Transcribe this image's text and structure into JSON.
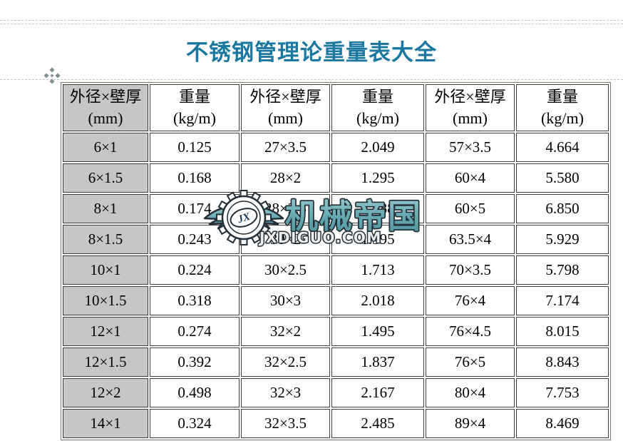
{
  "page": {
    "title": "不锈钢管理论重量表大全"
  },
  "colors": {
    "title_text": "#1B79A1",
    "table_header_column_bg": "#C6C6C6",
    "table_border": "#3F3F3A",
    "watermark_teal": "#6AACB3",
    "watermark_outline": "#232E36"
  },
  "icons": {
    "table_move_handle": "four-diamond-move-handle",
    "watermark_logo": "winged-gear-logo"
  },
  "table": {
    "header": {
      "size_line1": "外径×壁厚",
      "size_line2": "(mm)",
      "weight_line1": "重量",
      "weight_line2": "(kg/m)"
    },
    "rows": [
      [
        "6×1",
        "0.125",
        "27×3.5",
        "2.049",
        "57×3.5",
        "4.664"
      ],
      [
        "6×1.5",
        "0.168",
        "28×2",
        "1.295",
        "60×4",
        "5.580"
      ],
      [
        "8×1",
        "0.174",
        "28×2.5",
        "1.588",
        "60×5",
        "6.850"
      ],
      [
        "8×1.5",
        "0.243",
        "30×2",
        "1.395",
        "63.5×4",
        "5.929"
      ],
      [
        "10×1",
        "0.224",
        "30×2.5",
        "1.713",
        "70×3.5",
        "5.798"
      ],
      [
        "10×1.5",
        "0.318",
        "30×3",
        "2.018",
        "76×4",
        "7.174"
      ],
      [
        "12×1",
        "0.274",
        "32×2",
        "1.495",
        "76×4.5",
        "8.015"
      ],
      [
        "12×1.5",
        "0.392",
        "32×2.5",
        "1.837",
        "76×5",
        "8.843"
      ],
      [
        "12×2",
        "0.498",
        "32×3",
        "2.167",
        "80×4",
        "7.753"
      ],
      [
        "14×1",
        "0.324",
        "32×3.5",
        "2.485",
        "89×4",
        "8.469"
      ]
    ]
  },
  "watermark": {
    "logo_monogram": "JX",
    "brand_name": "机械帝国",
    "domain": "JXDIGUO.COM"
  }
}
